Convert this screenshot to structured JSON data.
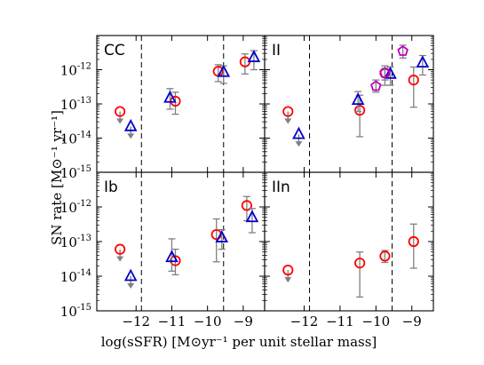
{
  "figure": {
    "ylabel": "SN rate  [M⊙⁻¹ yr⁻¹]",
    "xlabel": "log(sSFR)  [M⊙yr⁻¹ per unit stellar mass]",
    "y_tick_exponents": [
      "-15",
      "-14",
      "-13",
      "-12"
    ],
    "x_tick_labels": [
      "−12",
      "−11",
      "−10",
      "−9"
    ],
    "dashed_lines_x": [
      -11.85,
      -9.55
    ],
    "colors": {
      "circle": "#ff0000",
      "triangle": "#0000cc",
      "pentagon": "#bf00bf",
      "errorbar": "#808080"
    }
  },
  "chart_data": [
    {
      "panel": "CC",
      "type": "scatter",
      "log_y": true,
      "xlim": [
        -13.1,
        -8.4
      ],
      "ylim": [
        1e-15,
        1e-11
      ],
      "x_ticks": [
        -12,
        -11,
        -10,
        -9
      ],
      "series": [
        {
          "marker": "circle",
          "points": [
            {
              "x": -12.45,
              "y": 6e-14,
              "upper_limit": true
            },
            {
              "x": -10.9,
              "y": 1.2e-13,
              "err": [
                5e-14,
                2.2e-13
              ]
            },
            {
              "x": -9.7,
              "y": 9e-13,
              "err": [
                4.5e-13,
                1.4e-12
              ]
            },
            {
              "x": -8.95,
              "y": 1.7e-12,
              "err": [
                7.5e-13,
                2.9e-12
              ]
            }
          ]
        },
        {
          "marker": "triangle",
          "points": [
            {
              "x": -12.15,
              "y": 2.2e-14,
              "upper_limit": true
            },
            {
              "x": -11.05,
              "y": 1.5e-13,
              "err": [
                7e-14,
                2.8e-13
              ]
            },
            {
              "x": -9.55,
              "y": 8.5e-13,
              "err": [
                4e-13,
                1.3e-12
              ]
            },
            {
              "x": -8.7,
              "y": 2.3e-12,
              "err": [
                1e-12,
                3.6e-12
              ]
            }
          ]
        }
      ]
    },
    {
      "panel": "II",
      "type": "scatter",
      "log_y": true,
      "xlim": [
        -13.1,
        -8.4
      ],
      "ylim": [
        1e-15,
        1e-11
      ],
      "x_ticks": [
        -12,
        -11,
        -10,
        -9
      ],
      "series": [
        {
          "marker": "circle",
          "points": [
            {
              "x": -12.45,
              "y": 6e-14,
              "upper_limit": true
            },
            {
              "x": -10.45,
              "y": 6.5e-14,
              "err": [
                1.1e-14,
                1.8e-13
              ]
            },
            {
              "x": -9.75,
              "y": 8e-13,
              "err": [
                3.5e-13,
                1.3e-12
              ]
            },
            {
              "x": -8.95,
              "y": 5e-13,
              "err": [
                8e-14,
                1.2e-12
              ]
            }
          ]
        },
        {
          "marker": "triangle",
          "points": [
            {
              "x": -12.15,
              "y": 1.3e-14,
              "upper_limit": true
            },
            {
              "x": -10.5,
              "y": 1.3e-13,
              "err": [
                6e-14,
                2.3e-13
              ]
            },
            {
              "x": -9.6,
              "y": 7.5e-13,
              "err": [
                3.5e-13,
                1.2e-12
              ]
            },
            {
              "x": -8.7,
              "y": 1.6e-12,
              "err": [
                7e-13,
                2.6e-12
              ]
            }
          ]
        },
        {
          "marker": "pentagon",
          "points": [
            {
              "x": -10.0,
              "y": 3.3e-13,
              "err": [
                2.2e-13,
                5e-13
              ]
            },
            {
              "x": -9.75,
              "y": 8e-13,
              "err": [
                5e-13,
                1.1e-12
              ]
            },
            {
              "x": -9.25,
              "y": 3.5e-12,
              "err": [
                2.2e-12,
                5.2e-12
              ]
            }
          ]
        }
      ]
    },
    {
      "panel": "Ib",
      "type": "scatter",
      "log_y": true,
      "xlim": [
        -13.1,
        -8.4
      ],
      "ylim": [
        1e-15,
        1e-11
      ],
      "x_ticks": [
        -12,
        -11,
        -10,
        -9
      ],
      "series": [
        {
          "marker": "circle",
          "points": [
            {
              "x": -12.45,
              "y": 6e-14,
              "upper_limit": true
            },
            {
              "x": -10.9,
              "y": 2.8e-14,
              "err": [
                1.1e-14,
                6e-14
              ]
            },
            {
              "x": -9.75,
              "y": 1.6e-13,
              "err": [
                2.6e-14,
                4.5e-13
              ]
            },
            {
              "x": -8.9,
              "y": 1.1e-12,
              "err": [
                4e-13,
                2e-12
              ]
            }
          ]
        },
        {
          "marker": "triangle",
          "points": [
            {
              "x": -12.15,
              "y": 1e-14,
              "upper_limit": true
            },
            {
              "x": -11.0,
              "y": 3.5e-14,
              "err": [
                1.4e-14,
                1.2e-13
              ]
            },
            {
              "x": -9.6,
              "y": 1.3e-13,
              "err": [
                6e-14,
                2.2e-13
              ]
            },
            {
              "x": -8.75,
              "y": 5e-13,
              "err": [
                1.8e-13,
                9e-13
              ]
            }
          ]
        }
      ]
    },
    {
      "panel": "IIn",
      "type": "scatter",
      "log_y": true,
      "xlim": [
        -13.1,
        -8.4
      ],
      "ylim": [
        1e-15,
        1e-11
      ],
      "x_ticks": [
        -12,
        -11,
        -10,
        -9
      ],
      "series": [
        {
          "marker": "circle",
          "points": [
            {
              "x": -12.45,
              "y": 1.5e-14,
              "upper_limit": true
            },
            {
              "x": -10.45,
              "y": 2.4e-14,
              "err": [
                2.5e-15,
                5e-14
              ]
            },
            {
              "x": -9.75,
              "y": 3.8e-14,
              "err": [
                2.5e-14,
                5.5e-14
              ]
            },
            {
              "x": -8.95,
              "y": 1e-13,
              "err": [
                1.7e-14,
                3.2e-13
              ]
            }
          ]
        }
      ]
    }
  ]
}
